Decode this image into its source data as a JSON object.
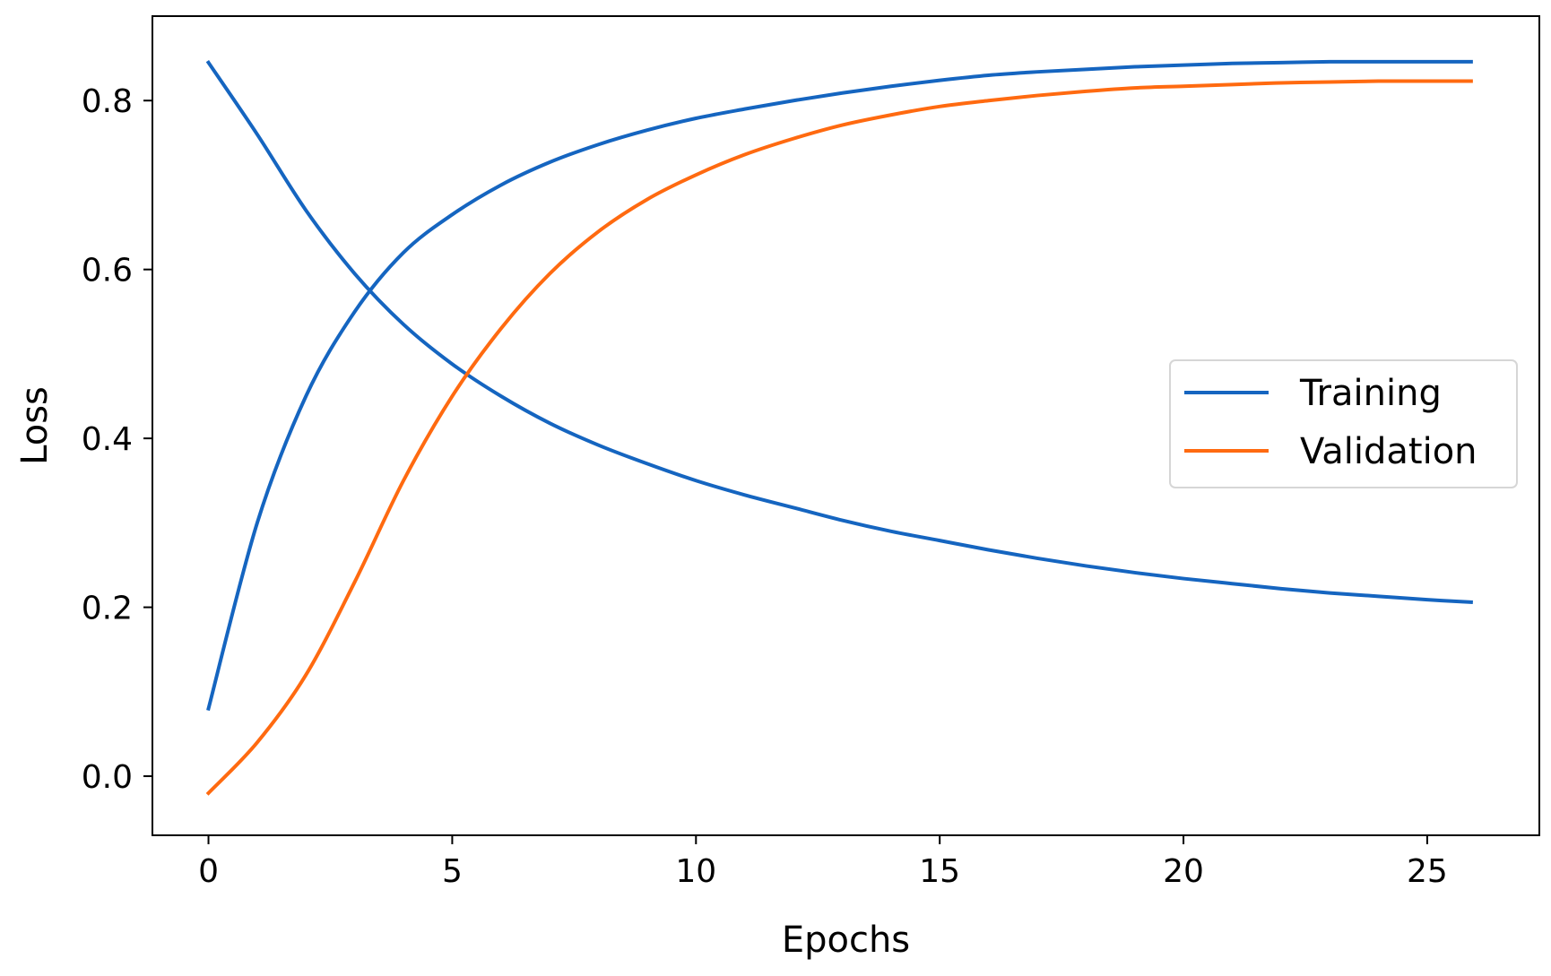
{
  "chart_data": {
    "type": "line",
    "title": "",
    "xlabel": "Epochs",
    "ylabel": "Loss",
    "xlim": [
      -1.15,
      27.3
    ],
    "ylim": [
      -0.07,
      0.9
    ],
    "xticks": [
      0,
      5,
      10,
      15,
      20,
      25
    ],
    "xtick_labels": [
      "0",
      "5",
      "10",
      "15",
      "20",
      "25"
    ],
    "yticks": [
      0.0,
      0.2,
      0.4,
      0.6,
      0.8
    ],
    "ytick_labels": [
      "0.0",
      "0.2",
      "0.4",
      "0.6",
      "0.8"
    ],
    "grid": false,
    "legend_position": "center-right",
    "legend": [
      {
        "label": "Training",
        "color": "#1565c0"
      },
      {
        "label": "Validation",
        "color": "#ff6a10"
      }
    ],
    "series": [
      {
        "name": "Training",
        "color": "#1565c0",
        "x": [
          0,
          1,
          2,
          3,
          4,
          5,
          6,
          7,
          8,
          9,
          10,
          11,
          12,
          13,
          14,
          15,
          16,
          17,
          18,
          19,
          20,
          21,
          22,
          23,
          24,
          25,
          25.9
        ],
        "y": [
          0.08,
          0.3,
          0.45,
          0.55,
          0.62,
          0.665,
          0.7,
          0.727,
          0.748,
          0.765,
          0.779,
          0.79,
          0.8,
          0.809,
          0.817,
          0.824,
          0.83,
          0.834,
          0.837,
          0.84,
          0.842,
          0.844,
          0.845,
          0.846,
          0.846,
          0.846,
          0.846
        ]
      },
      {
        "name": "",
        "color": "#1565c0",
        "x": [
          0,
          1,
          2,
          3,
          4,
          5,
          6,
          7,
          8,
          9,
          10,
          11,
          12,
          13,
          14,
          15,
          16,
          17,
          18,
          19,
          20,
          21,
          22,
          23,
          24,
          25,
          25.9
        ],
        "y": [
          0.845,
          0.76,
          0.67,
          0.595,
          0.535,
          0.488,
          0.45,
          0.418,
          0.392,
          0.37,
          0.35,
          0.333,
          0.318,
          0.303,
          0.29,
          0.279,
          0.268,
          0.258,
          0.249,
          0.241,
          0.234,
          0.228,
          0.222,
          0.217,
          0.213,
          0.209,
          0.206
        ]
      },
      {
        "name": "Validation",
        "color": "#ff6a10",
        "x": [
          0,
          1,
          2,
          3,
          4,
          5,
          6,
          7,
          8,
          9,
          10,
          11,
          12,
          13,
          14,
          15,
          16,
          17,
          18,
          19,
          20,
          21,
          22,
          23,
          24,
          25,
          25.9
        ],
        "y": [
          -0.02,
          0.04,
          0.12,
          0.23,
          0.35,
          0.45,
          0.53,
          0.595,
          0.645,
          0.683,
          0.712,
          0.736,
          0.755,
          0.771,
          0.783,
          0.793,
          0.8,
          0.806,
          0.811,
          0.815,
          0.817,
          0.819,
          0.821,
          0.822,
          0.823,
          0.823,
          0.823
        ]
      }
    ]
  }
}
